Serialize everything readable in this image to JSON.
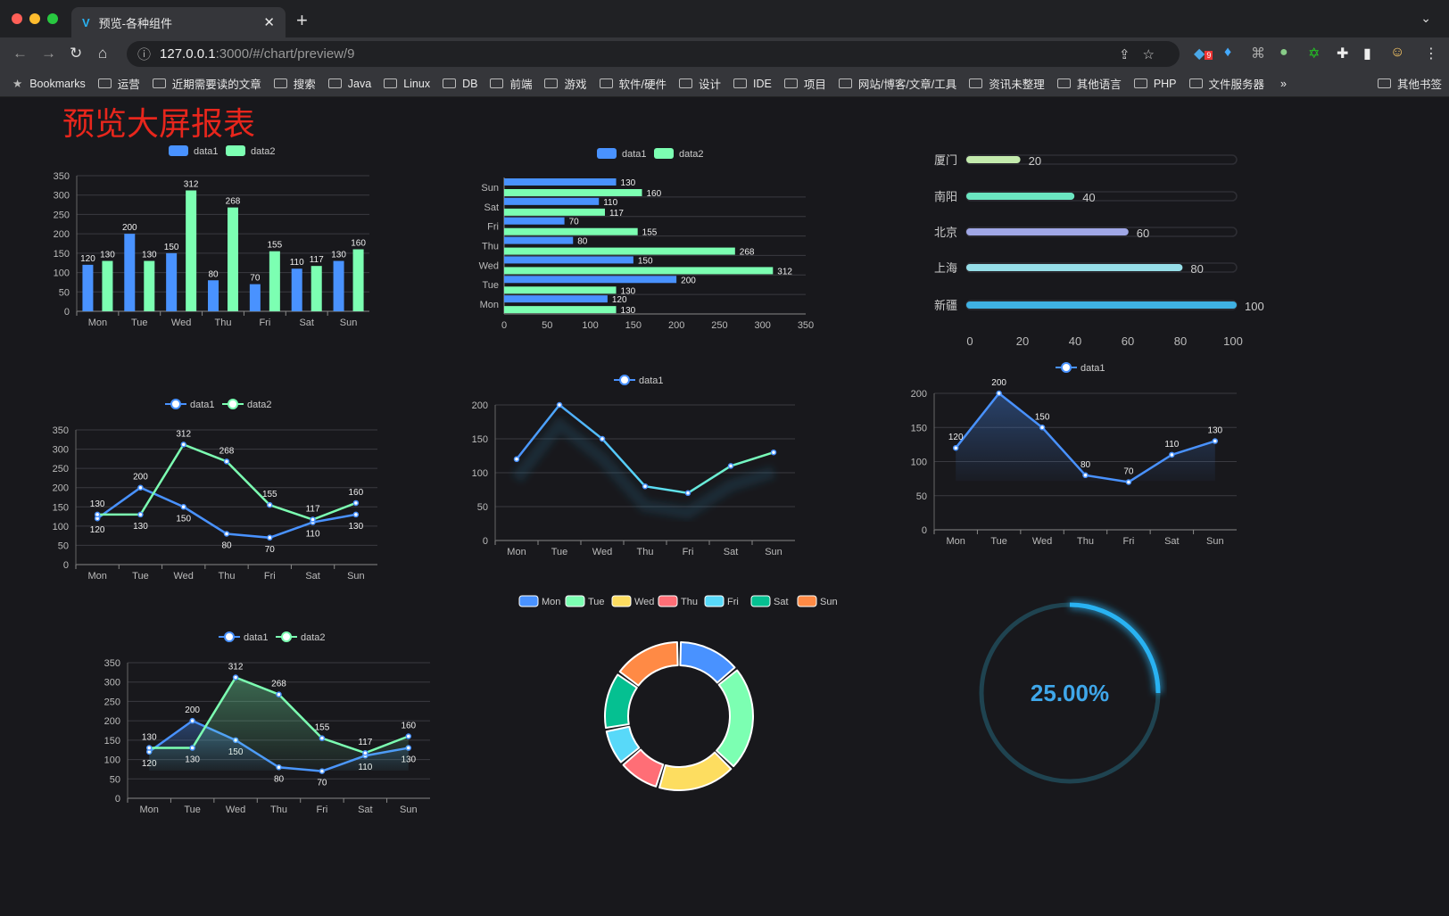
{
  "browser": {
    "tab_title": "预览-各种组件",
    "url_host": "127.0.0.1",
    "url_path": ":3000/#/chart/preview/9",
    "bookmarks": [
      "Bookmarks",
      "运营",
      "近期需要读的文章",
      "搜索",
      "Java",
      "Linux",
      "DB",
      "前端",
      "游戏",
      "软件/硬件",
      "设计",
      "IDE",
      "项目",
      "网站/博客/文章/工具",
      "资讯未整理",
      "其他语言",
      "PHP",
      "文件服务器"
    ],
    "more": "»",
    "other_bookmarks": "其他书签",
    "ext_badge": "9"
  },
  "page": {
    "title": "预览大屏报表"
  },
  "colors": {
    "data1": "#4992ff",
    "data2": "#7cffb2",
    "bg": "#18181c",
    "title": "#e8261c",
    "gauge": "#29b2f2"
  },
  "chart_data": [
    {
      "type": "bar",
      "id": "bar-v",
      "categories": [
        "Mon",
        "Tue",
        "Wed",
        "Thu",
        "Fri",
        "Sat",
        "Sun"
      ],
      "series": [
        {
          "name": "data1",
          "values": [
            120,
            200,
            150,
            80,
            70,
            110,
            130
          ]
        },
        {
          "name": "data2",
          "values": [
            130,
            130,
            312,
            268,
            155,
            117,
            160
          ]
        }
      ],
      "ylim": [
        0,
        350
      ],
      "yticks": [
        0,
        50,
        100,
        150,
        200,
        250,
        300,
        350
      ],
      "legend": "top-center",
      "grid": true
    },
    {
      "type": "bar",
      "id": "bar-h",
      "orientation": "horizontal",
      "categories": [
        "Mon",
        "Tue",
        "Wed",
        "Thu",
        "Fri",
        "Sat",
        "Sun"
      ],
      "series": [
        {
          "name": "data1",
          "values": [
            120,
            200,
            150,
            80,
            70,
            110,
            130
          ]
        },
        {
          "name": "data2",
          "values": [
            130,
            130,
            312,
            268,
            155,
            117,
            160
          ]
        }
      ],
      "xlim": [
        0,
        350
      ],
      "xticks": [
        0,
        50,
        100,
        150,
        200,
        250,
        300,
        350
      ],
      "legend": "top-center",
      "grid": true
    },
    {
      "type": "bar",
      "id": "progress",
      "orientation": "horizontal",
      "categories": [
        "新疆",
        "上海",
        "北京",
        "南阳",
        "厦门"
      ],
      "values": [
        100,
        80,
        60,
        40,
        20
      ],
      "colors": [
        "#3fb1e3",
        "#96dee8",
        "#a0a7e6",
        "#6be6c1",
        "#c4ebad"
      ],
      "xlim": [
        0,
        100
      ],
      "xticks": [
        0,
        20,
        40,
        60,
        80,
        100
      ]
    },
    {
      "type": "line",
      "id": "line2",
      "categories": [
        "Mon",
        "Tue",
        "Wed",
        "Thu",
        "Fri",
        "Sat",
        "Sun"
      ],
      "series": [
        {
          "name": "data1",
          "values": [
            120,
            200,
            150,
            80,
            70,
            110,
            130
          ]
        },
        {
          "name": "data2",
          "values": [
            130,
            130,
            312,
            268,
            155,
            117,
            160
          ]
        }
      ],
      "ylim": [
        0,
        350
      ],
      "yticks": [
        0,
        50,
        100,
        150,
        200,
        250,
        300,
        350
      ],
      "legend": "top-center",
      "grid": true
    },
    {
      "type": "line",
      "id": "line1",
      "categories": [
        "Mon",
        "Tue",
        "Wed",
        "Thu",
        "Fri",
        "Sat",
        "Sun"
      ],
      "series": [
        {
          "name": "data1",
          "values": [
            120,
            200,
            150,
            80,
            70,
            110,
            130
          ]
        }
      ],
      "ylim": [
        0,
        200
      ],
      "yticks": [
        0,
        50,
        100,
        150,
        200
      ],
      "legend": "top-center",
      "grid": true
    },
    {
      "type": "area",
      "id": "area1",
      "categories": [
        "Mon",
        "Tue",
        "Wed",
        "Thu",
        "Fri",
        "Sat",
        "Sun"
      ],
      "series": [
        {
          "name": "data1",
          "values": [
            120,
            200,
            150,
            80,
            70,
            110,
            130
          ]
        }
      ],
      "ylim": [
        0,
        200
      ],
      "yticks": [
        0,
        50,
        100,
        150,
        200
      ],
      "legend": "top-center",
      "grid": true
    },
    {
      "type": "area",
      "id": "area2",
      "categories": [
        "Mon",
        "Tue",
        "Wed",
        "Thu",
        "Fri",
        "Sat",
        "Sun"
      ],
      "series": [
        {
          "name": "data1",
          "values": [
            120,
            200,
            150,
            80,
            70,
            110,
            130
          ]
        },
        {
          "name": "data2",
          "values": [
            130,
            130,
            312,
            268,
            155,
            117,
            160
          ]
        }
      ],
      "ylim": [
        0,
        350
      ],
      "yticks": [
        0,
        50,
        100,
        150,
        200,
        250,
        300,
        350
      ],
      "legend": "top-center",
      "grid": true
    },
    {
      "type": "pie",
      "id": "donut",
      "categories": [
        "Mon",
        "Tue",
        "Wed",
        "Thu",
        "Fri",
        "Sat",
        "Sun"
      ],
      "values": [
        120,
        200,
        150,
        80,
        70,
        110,
        130
      ],
      "colors": [
        "#4992ff",
        "#7cffb2",
        "#fddd60",
        "#ff6e76",
        "#58d9f9",
        "#05c091",
        "#ff8a45"
      ],
      "legend": "top-center"
    },
    {
      "type": "gauge",
      "id": "gauge",
      "value": 0.25,
      "label": "25.00%"
    }
  ]
}
